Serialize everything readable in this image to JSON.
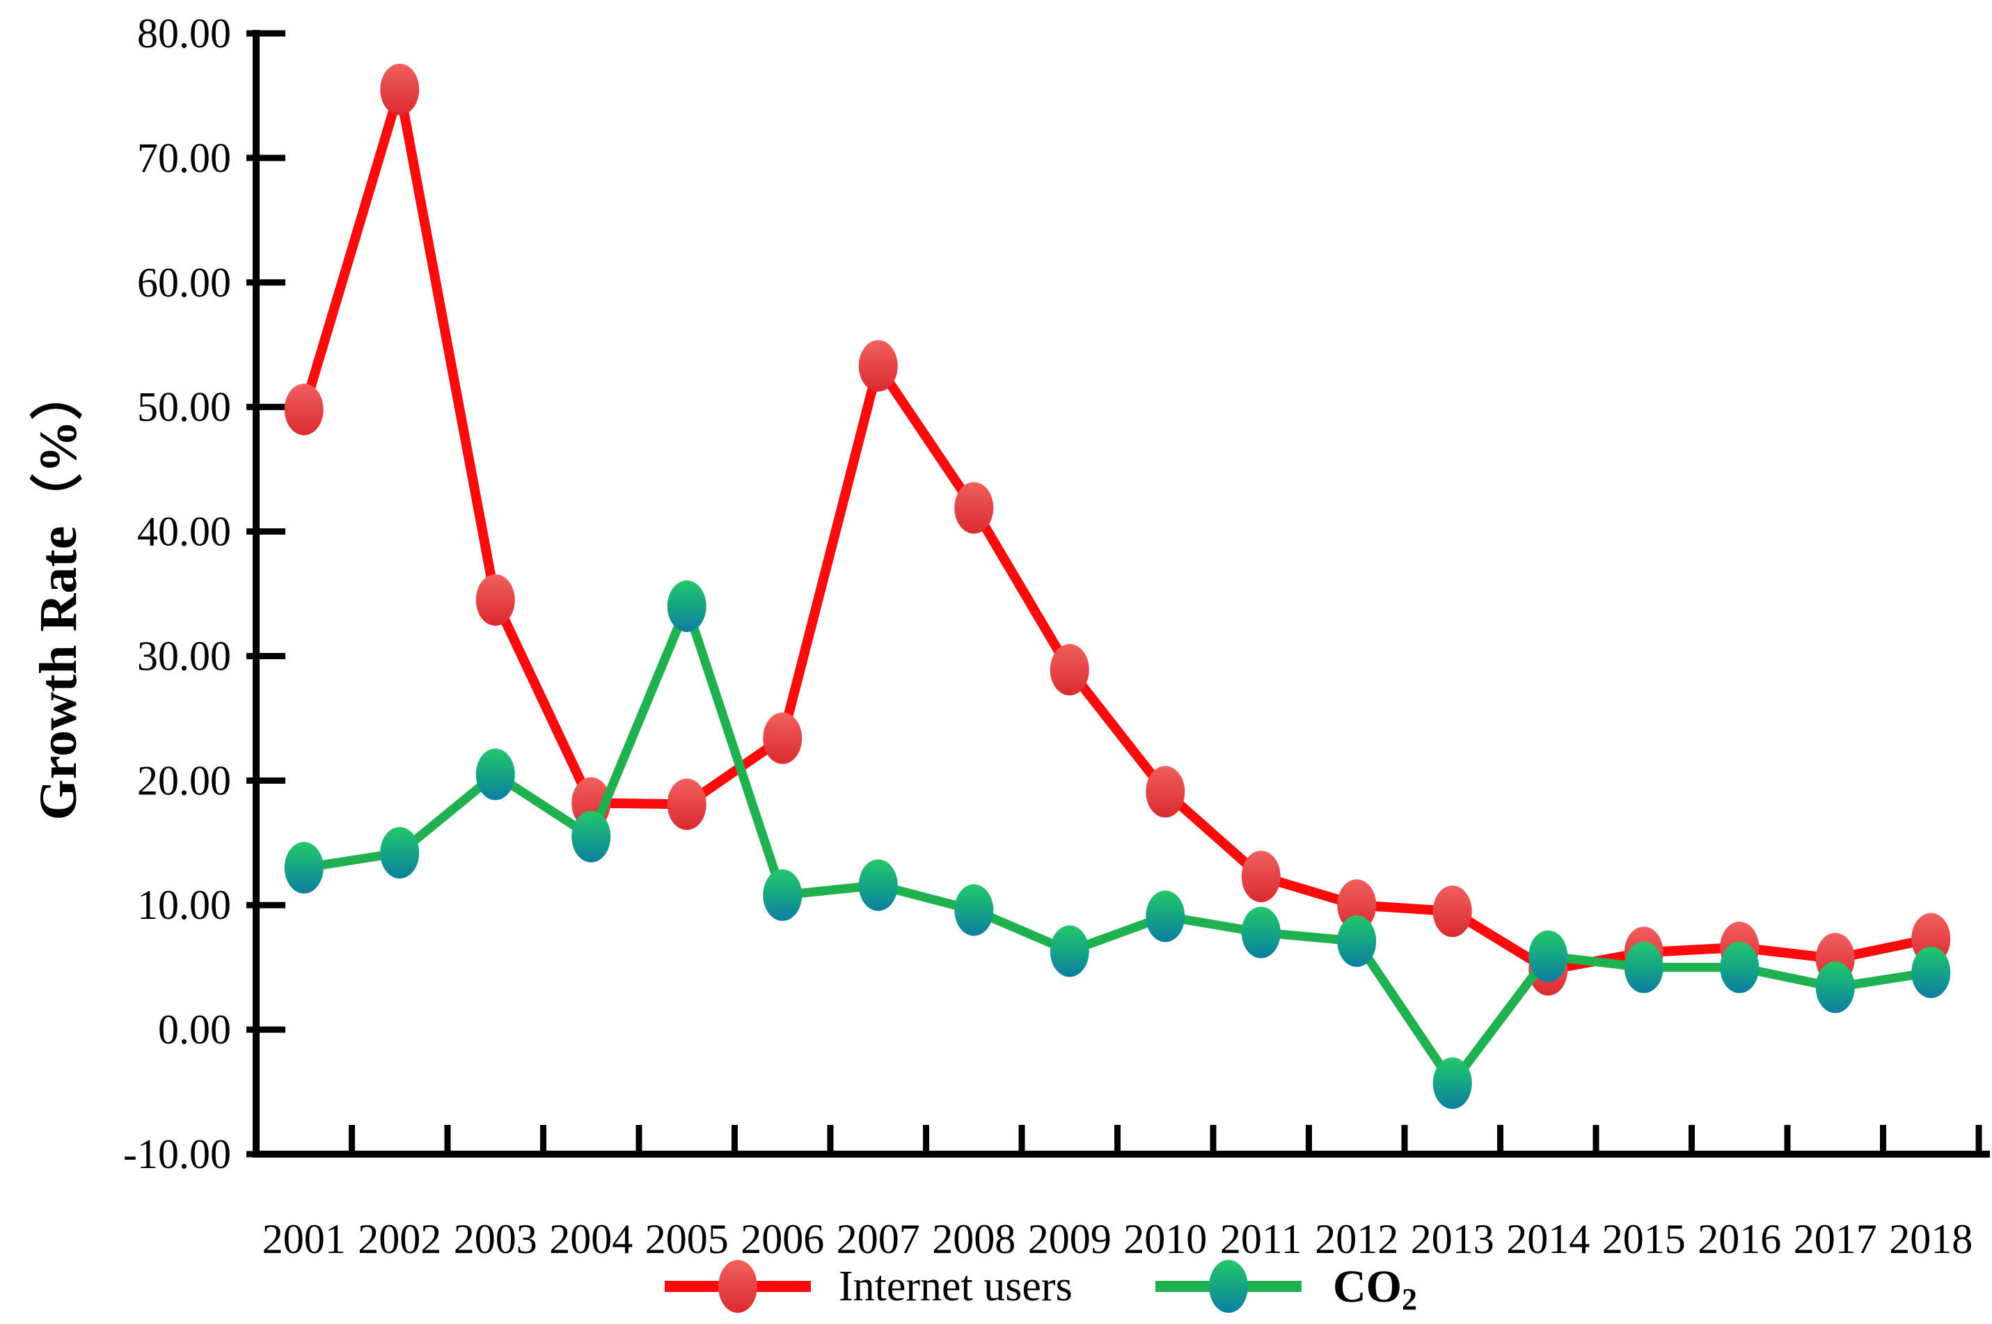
{
  "chart_data": {
    "type": "line",
    "title": "",
    "xlabel": "",
    "ylabel": "Growth Rate（%）",
    "categories": [
      "2001",
      "2002",
      "2003",
      "2004",
      "2005",
      "2006",
      "2007",
      "2008",
      "2009",
      "2010",
      "2011",
      "2012",
      "2013",
      "2014",
      "2015",
      "2016",
      "2017",
      "2018"
    ],
    "y_axis": {
      "min": -10,
      "max": 80,
      "tick_step": 10,
      "tick_labels": [
        "80.00",
        "70.00",
        "60.00",
        "50.00",
        "40.00",
        "30.00",
        "20.00",
        "10.00",
        "0.00",
        "-10.00"
      ]
    },
    "grid": "off",
    "legend_position": "bottom-center",
    "series": [
      {
        "name": "Internet users",
        "legend_main": "Internet users",
        "legend_sub": "",
        "color": "#FB0B0C",
        "marker_colors": [
          "#F0605E",
          "#DB2A2F"
        ],
        "values": [
          49.8,
          75.5,
          34.5,
          18.2,
          18.1,
          23.4,
          53.3,
          41.9,
          28.9,
          19.1,
          12.3,
          10.0,
          9.5,
          4.8,
          6.2,
          6.6,
          5.7,
          7.3
        ]
      },
      {
        "name": "CO2",
        "legend_main": "CO",
        "legend_sub": "2",
        "color": "#1FB150",
        "marker_colors": [
          "#24C76A",
          "#15A584",
          "#0B7EA1"
        ],
        "values": [
          13.0,
          14.2,
          20.5,
          15.5,
          34.0,
          10.8,
          11.6,
          9.6,
          6.3,
          9.1,
          7.8,
          7.1,
          -4.3,
          5.9,
          5.0,
          5.0,
          3.4,
          4.6
        ]
      }
    ],
    "axis_color": "#000000"
  }
}
